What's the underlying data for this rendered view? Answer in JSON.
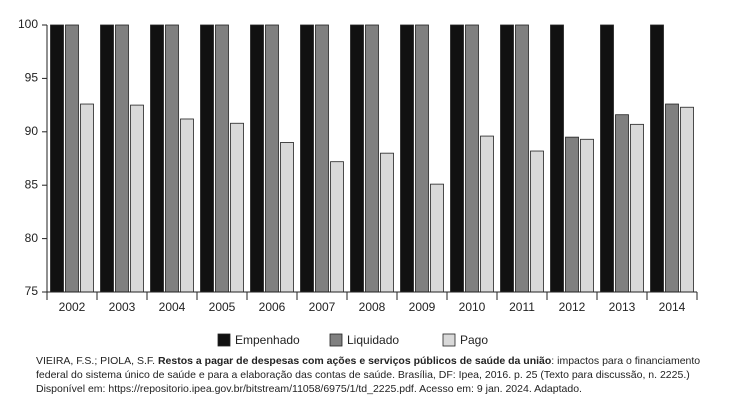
{
  "chart_data": {
    "type": "bar",
    "categories": [
      "2002",
      "2003",
      "2004",
      "2005",
      "2006",
      "2007",
      "2008",
      "2009",
      "2010",
      "2011",
      "2012",
      "2013",
      "2014"
    ],
    "series": [
      {
        "name": "Empenhado",
        "color": "#111111",
        "values": [
          100,
          100,
          100,
          100,
          100,
          100,
          100,
          100,
          100,
          100,
          100,
          100,
          100
        ]
      },
      {
        "name": "Liquidado",
        "color": "#808080",
        "values": [
          100,
          100,
          100,
          100,
          100,
          100,
          100,
          100,
          100,
          100,
          89.5,
          91.6,
          92.6
        ]
      },
      {
        "name": "Pago",
        "color": "#d9d9d9",
        "values": [
          92.6,
          92.5,
          91.2,
          90.8,
          89.0,
          87.2,
          88.0,
          85.1,
          89.6,
          88.2,
          89.3,
          90.7,
          92.3
        ]
      }
    ],
    "ylim": [
      75,
      100
    ],
    "yticks": [
      75,
      80,
      85,
      90,
      95,
      100
    ],
    "grid": false
  },
  "caption": {
    "authors": "VIEIRA, F.S.; PIOLA, S.F.",
    "title": "Restos a pagar de despesas com ações e serviços públicos de saúde da união",
    "rest": ": impactos para o financiamento federal do sistema único de saúde e para a elaboração das contas de saúde. Brasília, DF: Ipea, 2016. p. 25 (Texto para discussão, n. 2225.) Disponível em: https://repositorio.ipea.gov.br/bitstream/11058/6975/1/td_2225.pdf. Acesso em: 9 jan. 2024. Adaptado."
  }
}
